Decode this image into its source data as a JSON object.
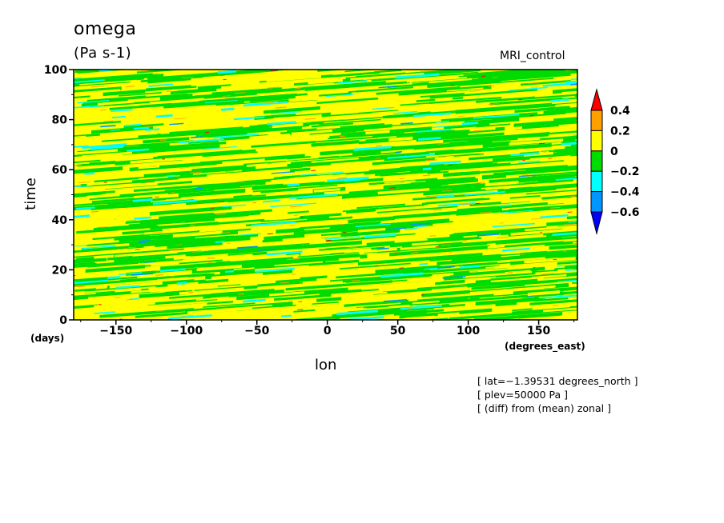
{
  "chart_data": {
    "type": "heatmap",
    "title": "omega",
    "units_label": "(Pa s-1)",
    "dataset_label": "MRI_control",
    "xlabel": "lon",
    "ylabel": "time",
    "x_unit": "(degrees_east)",
    "y_unit": "(days)",
    "xlim": [
      -180,
      177.5
    ],
    "ylim": [
      0,
      100
    ],
    "x_ticks": [
      -150,
      -100,
      -50,
      0,
      50,
      100,
      150
    ],
    "x_tick_labels": [
      "−150",
      "−100",
      "−50",
      "0",
      "50",
      "100",
      "150"
    ],
    "y_ticks": [
      0,
      20,
      40,
      60,
      80,
      100
    ],
    "y_tick_labels": [
      "0",
      "20",
      "40",
      "60",
      "80",
      "100"
    ],
    "colorbar": {
      "levels": [
        0.4,
        0.2,
        0,
        -0.2,
        -0.4,
        -0.6
      ],
      "level_labels": [
        "0.4",
        "0.2",
        "0",
        "−0.2",
        "−0.4",
        "−0.6"
      ],
      "colors_top_to_bottom": [
        "#ff0000",
        "#ffa000",
        "#ffff00",
        "#00dc00",
        "#00ffff",
        "#0096ff",
        "#0000ff"
      ]
    },
    "notes": [
      "[ lat=−1.39531 degrees_north ]",
      "[ plev=50000 Pa ]",
      "[ (diff) from (mean) zonal ]"
    ]
  }
}
